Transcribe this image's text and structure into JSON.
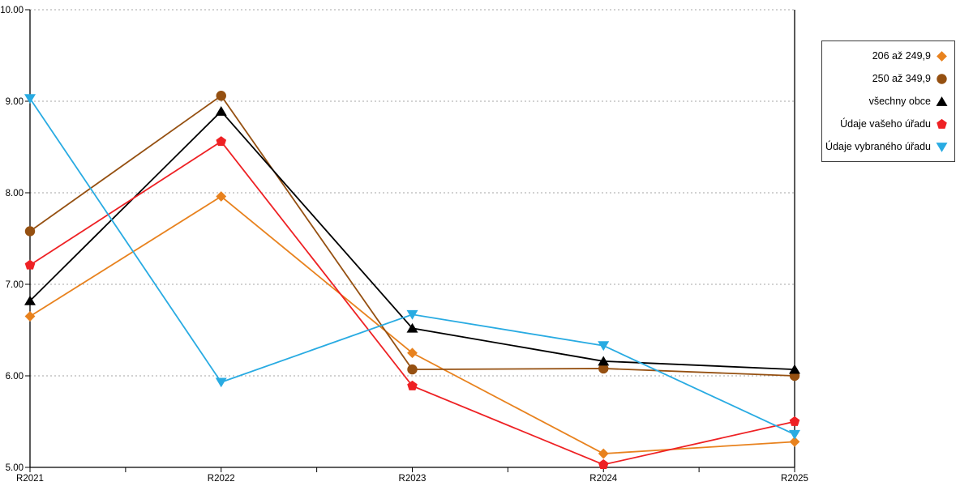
{
  "chart_data": {
    "type": "line",
    "title": "",
    "xlabel": "",
    "ylabel": "",
    "categories": [
      "R2021",
      "R2022",
      "R2023",
      "R2024",
      "R2025"
    ],
    "series": [
      {
        "name": "206 až 249,9",
        "marker": "diamond",
        "color": "#E8821E",
        "values": [
          6.65,
          7.96,
          6.25,
          5.15,
          5.28
        ]
      },
      {
        "name": "250 až 349,9",
        "marker": "circle",
        "color": "#955011",
        "values": [
          7.58,
          9.06,
          6.07,
          6.08,
          6.0
        ]
      },
      {
        "name": "všechny obce",
        "marker": "triangle-up",
        "color": "#000000",
        "values": [
          6.82,
          8.89,
          6.52,
          6.16,
          6.07
        ]
      },
      {
        "name": "Údaje vašeho úřadu",
        "marker": "pentagon",
        "color": "#EE2124",
        "values": [
          7.21,
          8.56,
          5.89,
          5.03,
          5.5
        ]
      },
      {
        "name": "Údaje vybraného úřadu",
        "marker": "triangle-down",
        "color": "#29ABE2",
        "values": [
          9.03,
          5.93,
          6.67,
          6.33,
          5.36
        ]
      }
    ],
    "ylim": [
      5,
      10
    ],
    "ytick_step": 1,
    "ytick_labels": [
      "5.00",
      "6.00",
      "7.00",
      "8.00",
      "9.00",
      "10.00"
    ],
    "grid": "horizontal-dotted",
    "legend_position": "top-right-outside"
  },
  "colors": {
    "axis": "#000000",
    "grid": "#A6A6A6",
    "background": "#FFFFFF",
    "legend_border": "#3C3C3C",
    "text": "#000000"
  }
}
